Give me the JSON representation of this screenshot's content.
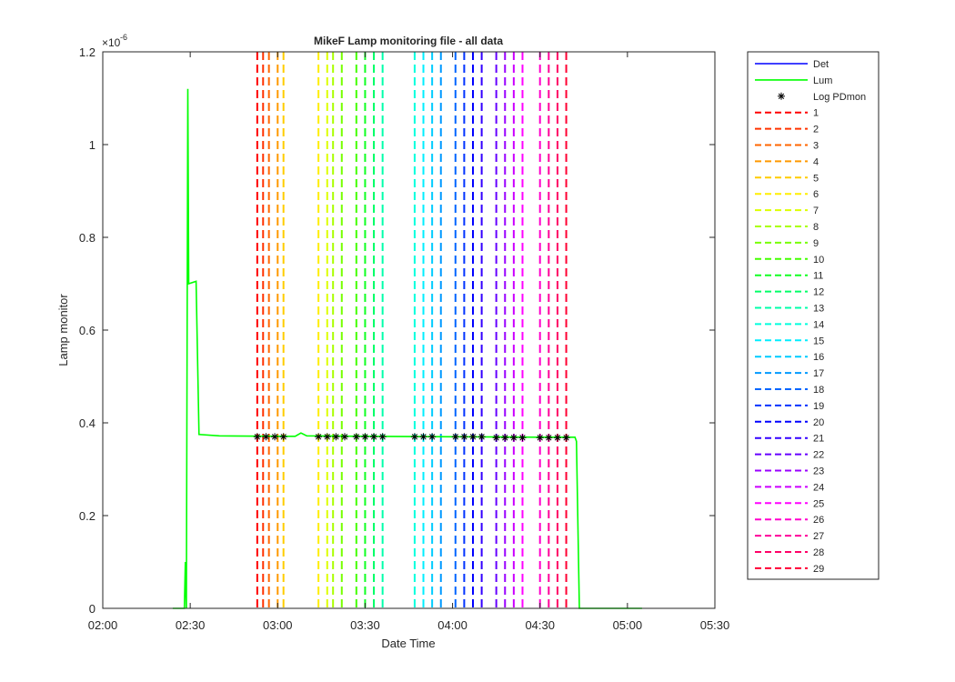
{
  "chart_data": {
    "type": "line",
    "title": "MikeF Lamp monitoring file - all data",
    "xlabel": "Date Time",
    "ylabel": "Lamp monitor",
    "y_exponent_label": "×10",
    "y_exponent_power": "-6",
    "x_range": [
      "02:00",
      "05:30"
    ],
    "x_ticks": [
      "02:00",
      "02:30",
      "03:00",
      "03:30",
      "04:00",
      "04:30",
      "05:00",
      "05:30"
    ],
    "y_range": [
      0,
      1.2
    ],
    "y_ticks": [
      "0",
      "0.2",
      "0.4",
      "0.6",
      "0.8",
      "1",
      "1.2"
    ],
    "grid": false,
    "legend_position": "outside-right",
    "series": [
      {
        "name": "Det",
        "color": "#0000ff",
        "style": "solid",
        "points": []
      },
      {
        "name": "Lum",
        "color": "#00ff00",
        "style": "solid",
        "points": [
          [
            "02:24",
            0
          ],
          [
            "02:28",
            0
          ],
          [
            "02:28:20",
            0.1
          ],
          [
            "02:28:40",
            0.0
          ],
          [
            "02:29:10",
            1.12
          ],
          [
            "02:29:30",
            0.7
          ],
          [
            "02:32",
            0.705
          ],
          [
            "02:33",
            0.375
          ],
          [
            "02:40",
            0.372
          ],
          [
            "03:00",
            0.371
          ],
          [
            "03:06",
            0.371
          ],
          [
            "03:08",
            0.378
          ],
          [
            "03:10",
            0.372
          ],
          [
            "03:30",
            0.371
          ],
          [
            "04:00",
            0.37
          ],
          [
            "04:30",
            0.369
          ],
          [
            "04:42",
            0.369
          ],
          [
            "04:42:30",
            0.36
          ],
          [
            "04:43:30",
            0.0
          ],
          [
            "04:50",
            0
          ],
          [
            "05:05",
            0
          ]
        ]
      },
      {
        "name": "Log PDmon",
        "color": "#000000",
        "style": "marker-asterisk",
        "points": [
          [
            "02:53",
            0.37
          ],
          [
            "02:56",
            0.37
          ],
          [
            "02:59",
            0.37
          ],
          [
            "03:02",
            0.37
          ],
          [
            "03:14",
            0.37
          ],
          [
            "03:17",
            0.37
          ],
          [
            "03:20",
            0.37
          ],
          [
            "03:23",
            0.37
          ],
          [
            "03:27",
            0.37
          ],
          [
            "03:30",
            0.37
          ],
          [
            "03:33",
            0.37
          ],
          [
            "03:36",
            0.37
          ],
          [
            "03:47",
            0.37
          ],
          [
            "03:50",
            0.37
          ],
          [
            "03:53",
            0.37
          ],
          [
            "04:01",
            0.37
          ],
          [
            "04:04",
            0.37
          ],
          [
            "04:07",
            0.37
          ],
          [
            "04:10",
            0.37
          ],
          [
            "04:15",
            0.368
          ],
          [
            "04:18",
            0.368
          ],
          [
            "04:21",
            0.368
          ],
          [
            "04:24",
            0.368
          ],
          [
            "04:30",
            0.368
          ],
          [
            "04:33",
            0.368
          ],
          [
            "04:36",
            0.368
          ],
          [
            "04:39",
            0.368
          ]
        ]
      }
    ],
    "vertical_lines": [
      {
        "name": "1",
        "x": "02:53",
        "color": "#ff0000"
      },
      {
        "name": "2",
        "x": "02:55",
        "color": "#ff3300"
      },
      {
        "name": "3",
        "x": "02:57",
        "color": "#ff6600"
      },
      {
        "name": "4",
        "x": "03:00",
        "color": "#ff9900"
      },
      {
        "name": "5",
        "x": "03:02",
        "color": "#ffcc00"
      },
      {
        "name": "6",
        "x": "03:14",
        "color": "#ffee00"
      },
      {
        "name": "7",
        "x": "03:17",
        "color": "#ddff00"
      },
      {
        "name": "8",
        "x": "03:19",
        "color": "#aaff00"
      },
      {
        "name": "9",
        "x": "03:22",
        "color": "#77ff00"
      },
      {
        "name": "10",
        "x": "03:27",
        "color": "#44ff00"
      },
      {
        "name": "11",
        "x": "03:30",
        "color": "#11ff22"
      },
      {
        "name": "12",
        "x": "03:33",
        "color": "#00ff66"
      },
      {
        "name": "13",
        "x": "03:36",
        "color": "#00ffaa"
      },
      {
        "name": "14",
        "x": "03:47",
        "color": "#00ffdd"
      },
      {
        "name": "15",
        "x": "03:50",
        "color": "#00eeff"
      },
      {
        "name": "16",
        "x": "03:53",
        "color": "#00ccff"
      },
      {
        "name": "17",
        "x": "03:56",
        "color": "#0099ff"
      },
      {
        "name": "18",
        "x": "04:01",
        "color": "#0066ff"
      },
      {
        "name": "19",
        "x": "04:04",
        "color": "#0033ff"
      },
      {
        "name": "20",
        "x": "04:07",
        "color": "#0000ff"
      },
      {
        "name": "21",
        "x": "04:10",
        "color": "#3300ff"
      },
      {
        "name": "22",
        "x": "04:15",
        "color": "#6600ff"
      },
      {
        "name": "23",
        "x": "04:18",
        "color": "#9900ff"
      },
      {
        "name": "24",
        "x": "04:21",
        "color": "#cc00ff"
      },
      {
        "name": "25",
        "x": "04:24",
        "color": "#ff00ff"
      },
      {
        "name": "26",
        "x": "04:30",
        "color": "#ff00cc"
      },
      {
        "name": "27",
        "x": "04:33",
        "color": "#ff0099"
      },
      {
        "name": "28",
        "x": "04:36",
        "color": "#ff0066"
      },
      {
        "name": "29",
        "x": "04:39",
        "color": "#ff0033"
      }
    ]
  }
}
